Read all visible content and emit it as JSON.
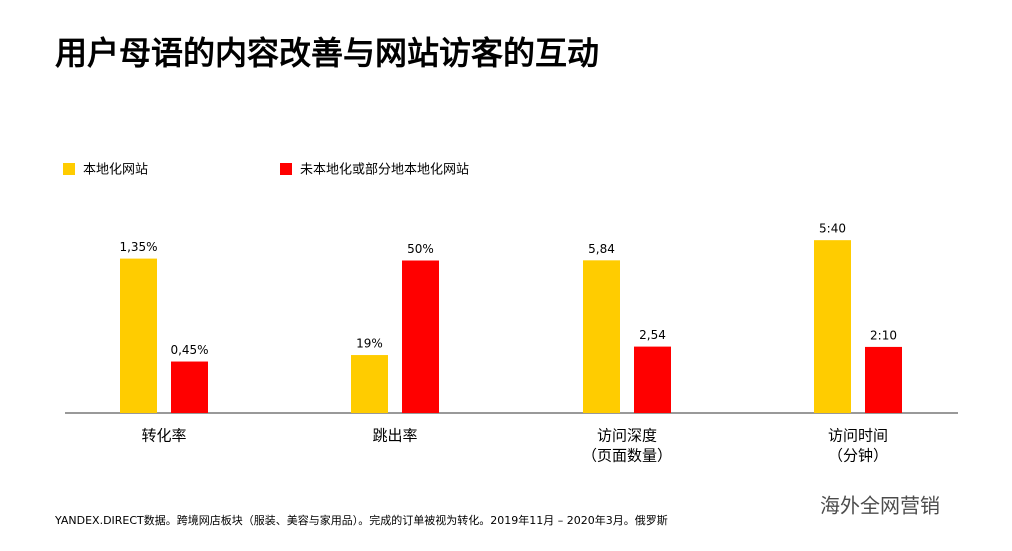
{
  "chart_data": {
    "type": "bar",
    "title": "用户母语的内容改善与网站访客的互动",
    "categories": [
      [
        "转化率"
      ],
      [
        "跳出率"
      ],
      [
        "访问深度",
        "（页面数量）"
      ],
      [
        "访问时间",
        "（分钟）"
      ]
    ],
    "series": [
      {
        "name": "本地化网站",
        "color": "#ffcc00",
        "values": [
          1.35,
          19,
          5.84,
          340
        ],
        "value_labels": [
          "1,35%",
          "19%",
          "5,84",
          "5:40"
        ]
      },
      {
        "name": "未本地化或部分地本地化网站",
        "color": "#ff0000",
        "values": [
          0.45,
          50,
          2.54,
          130
        ],
        "value_labels": [
          "0,45%",
          "50%",
          "2,54",
          "2:10"
        ]
      }
    ],
    "ylims": [
      [
        0,
        1.6
      ],
      [
        0,
        60
      ],
      [
        0,
        7
      ],
      [
        0,
        360
      ]
    ],
    "source": "YANDEX.DIRECT数据。跨境网店板块（服装、美容与家用品）。完成的订单被视为转化。2019年11月 – 2020年3月。俄罗斯",
    "watermark": "海外全网营销"
  }
}
